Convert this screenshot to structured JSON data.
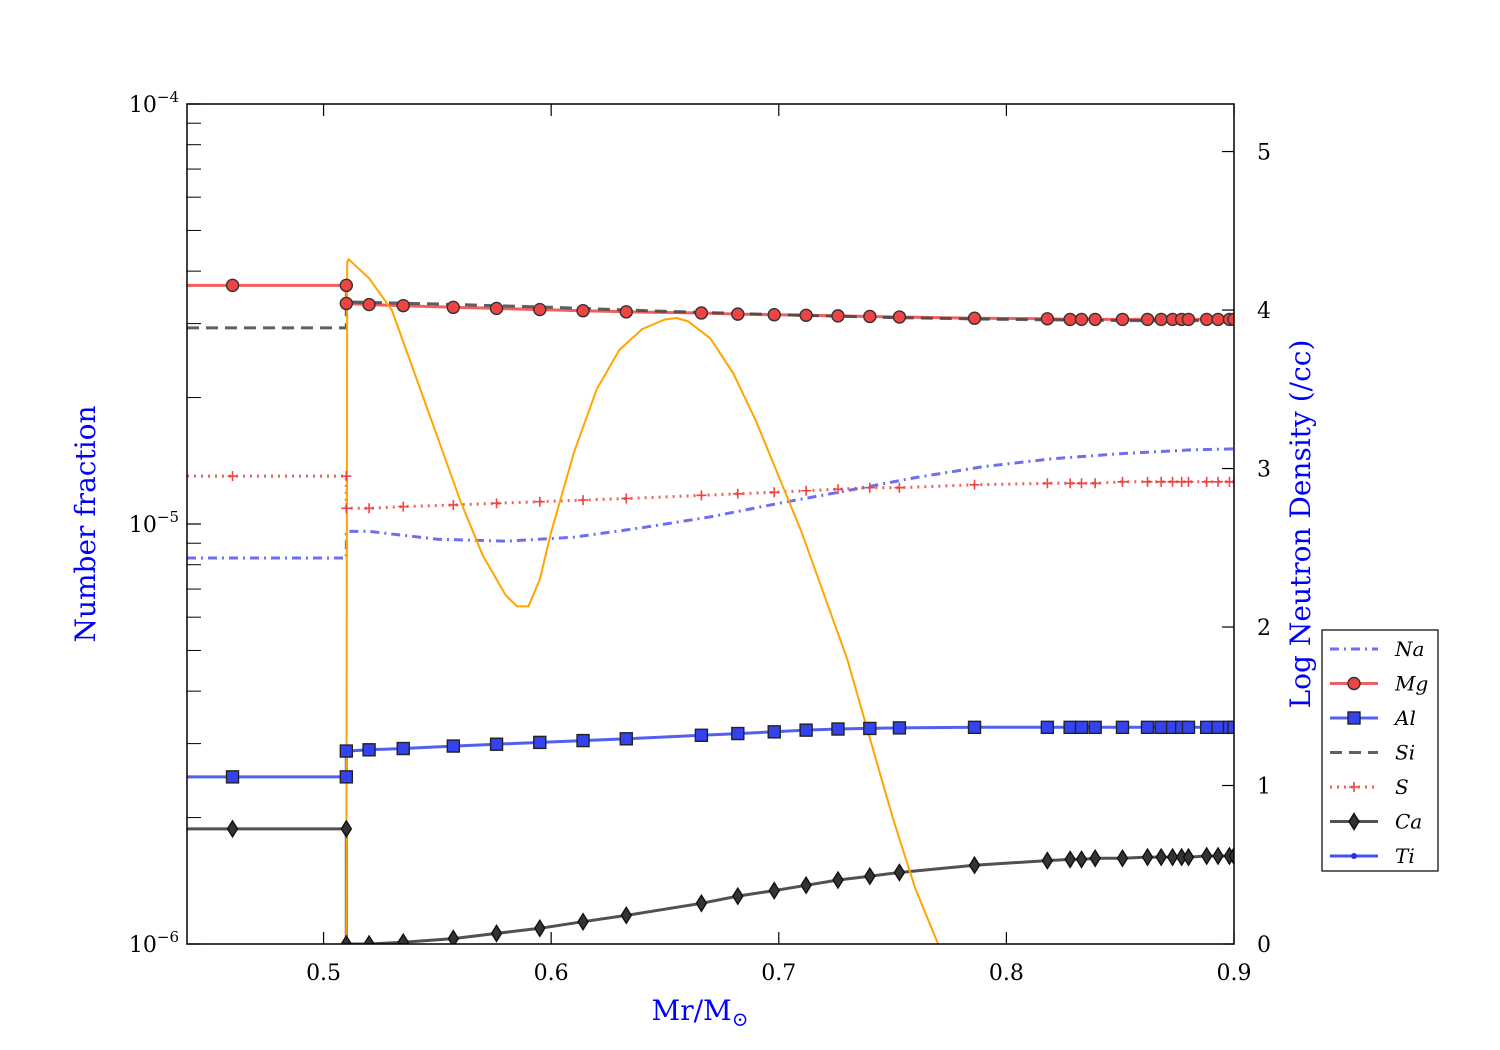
{
  "chart_data": {
    "type": "line",
    "title": "",
    "xlabel": "Mr/M",
    "xlabel_subscript": "⊙",
    "ylabel_left": "Number fraction",
    "ylabel_right": "Log Neutron Density (/cc)",
    "label_color": "#0000ff",
    "xlim": [
      0.44,
      0.9
    ],
    "ylim_left": [
      1e-06,
      0.0001
    ],
    "ylim_right": [
      0,
      5.3
    ],
    "yscale_left": "log",
    "x_ticks": [
      0.5,
      0.6,
      0.7,
      0.8,
      0.9
    ],
    "x_tick_labels": [
      "0.5",
      "0.6",
      "0.7",
      "0.8",
      "0.9"
    ],
    "y_left_ticks": [
      1e-06,
      1e-05,
      0.0001
    ],
    "y_left_tick_base": "10",
    "y_left_tick_exponents": [
      "−6",
      "−5",
      "−4"
    ],
    "y_right_ticks": [
      0,
      1,
      2,
      3,
      4,
      5
    ],
    "y_right_tick_labels": [
      "0",
      "1",
      "2",
      "3",
      "4",
      "5"
    ],
    "legend_position": "right",
    "series": [
      {
        "name": "Na",
        "axis": "left",
        "color": "#5555ee",
        "dash": "dot-dash",
        "marker": "none",
        "x": [
          0.44,
          0.51,
          0.51,
          0.52,
          0.55,
          0.58,
          0.61,
          0.64,
          0.67,
          0.7,
          0.73,
          0.76,
          0.79,
          0.82,
          0.85,
          0.88,
          0.9
        ],
        "y": [
          8.3e-06,
          8.3e-06,
          9.6e-06,
          9.6e-06,
          9.2e-06,
          9.1e-06,
          9.3e-06,
          9.8e-06,
          1.04e-05,
          1.12e-05,
          1.2e-05,
          1.29e-05,
          1.37e-05,
          1.43e-05,
          1.47e-05,
          1.5e-05,
          1.51e-05
        ]
      },
      {
        "name": "Mg",
        "axis": "left",
        "color": "#ee4444",
        "dash": "solid",
        "marker": "circle",
        "x": [
          0.44,
          0.46,
          0.51,
          0.51,
          0.52,
          0.535,
          0.557,
          0.576,
          0.595,
          0.614,
          0.633,
          0.666,
          0.682,
          0.698,
          0.712,
          0.726,
          0.74,
          0.753,
          0.786,
          0.818,
          0.828,
          0.833,
          0.839,
          0.851,
          0.862,
          0.868,
          0.873,
          0.877,
          0.88,
          0.888,
          0.893,
          0.898,
          0.9
        ],
        "y": [
          3.7e-05,
          3.7e-05,
          3.7e-05,
          3.35e-05,
          3.33e-05,
          3.31e-05,
          3.28e-05,
          3.26e-05,
          3.24e-05,
          3.22e-05,
          3.2e-05,
          3.18e-05,
          3.16e-05,
          3.15e-05,
          3.14e-05,
          3.13e-05,
          3.12e-05,
          3.11e-05,
          3.09e-05,
          3.08e-05,
          3.07e-05,
          3.07e-05,
          3.07e-05,
          3.07e-05,
          3.07e-05,
          3.07e-05,
          3.07e-05,
          3.07e-05,
          3.07e-05,
          3.07e-05,
          3.07e-05,
          3.07e-05,
          3.07e-05
        ]
      },
      {
        "name": "Al",
        "axis": "left",
        "color": "#3344ee",
        "dash": "solid",
        "marker": "square",
        "x": [
          0.44,
          0.46,
          0.51,
          0.51,
          0.52,
          0.535,
          0.557,
          0.576,
          0.595,
          0.614,
          0.633,
          0.666,
          0.682,
          0.698,
          0.712,
          0.726,
          0.74,
          0.753,
          0.786,
          0.818,
          0.828,
          0.833,
          0.839,
          0.851,
          0.862,
          0.868,
          0.873,
          0.877,
          0.88,
          0.888,
          0.893,
          0.898,
          0.9
        ],
        "y": [
          2.5e-06,
          2.5e-06,
          2.5e-06,
          2.88e-06,
          2.9e-06,
          2.92e-06,
          2.96e-06,
          2.99e-06,
          3.02e-06,
          3.05e-06,
          3.08e-06,
          3.14e-06,
          3.17e-06,
          3.2e-06,
          3.23e-06,
          3.25e-06,
          3.26e-06,
          3.27e-06,
          3.28e-06,
          3.28e-06,
          3.28e-06,
          3.28e-06,
          3.28e-06,
          3.28e-06,
          3.28e-06,
          3.28e-06,
          3.28e-06,
          3.28e-06,
          3.28e-06,
          3.28e-06,
          3.28e-06,
          3.28e-06,
          3.28e-06
        ]
      },
      {
        "name": "Si",
        "axis": "left",
        "color": "#444444",
        "dash": "dash",
        "marker": "none",
        "x": [
          0.44,
          0.51,
          0.51,
          0.55,
          0.6,
          0.65,
          0.7,
          0.75,
          0.8,
          0.85,
          0.9
        ],
        "y": [
          2.93e-05,
          2.93e-05,
          3.38e-05,
          3.34e-05,
          3.28e-05,
          3.21e-05,
          3.15e-05,
          3.1e-05,
          3.07e-05,
          3.05e-05,
          3.05e-05
        ]
      },
      {
        "name": "S",
        "axis": "left",
        "color": "#ee4444",
        "dash": "dot",
        "marker": "plus",
        "x": [
          0.44,
          0.46,
          0.51,
          0.51,
          0.52,
          0.535,
          0.557,
          0.576,
          0.595,
          0.614,
          0.633,
          0.666,
          0.682,
          0.698,
          0.712,
          0.726,
          0.74,
          0.753,
          0.786,
          0.818,
          0.828,
          0.833,
          0.839,
          0.851,
          0.862,
          0.868,
          0.873,
          0.877,
          0.88,
          0.888,
          0.893,
          0.898,
          0.9
        ],
        "y": [
          1.3e-05,
          1.3e-05,
          1.3e-05,
          1.09e-05,
          1.09e-05,
          1.1e-05,
          1.11e-05,
          1.12e-05,
          1.13e-05,
          1.14e-05,
          1.15e-05,
          1.17e-05,
          1.18e-05,
          1.19e-05,
          1.2e-05,
          1.21e-05,
          1.22e-05,
          1.22e-05,
          1.24e-05,
          1.25e-05,
          1.25e-05,
          1.25e-05,
          1.25e-05,
          1.26e-05,
          1.26e-05,
          1.26e-05,
          1.26e-05,
          1.26e-05,
          1.26e-05,
          1.26e-05,
          1.26e-05,
          1.26e-05,
          1.26e-05
        ]
      },
      {
        "name": "Ca",
        "axis": "left",
        "color": "#333333",
        "dash": "solid",
        "marker": "diamond",
        "x": [
          0.44,
          0.46,
          0.51,
          0.51,
          0.52,
          0.535,
          0.557,
          0.576,
          0.595,
          0.614,
          0.633,
          0.666,
          0.682,
          0.698,
          0.712,
          0.726,
          0.74,
          0.753,
          0.786,
          0.818,
          0.828,
          0.833,
          0.839,
          0.851,
          0.862,
          0.868,
          0.873,
          0.877,
          0.88,
          0.888,
          0.893,
          0.898,
          0.9
        ],
        "y": [
          1.88e-06,
          1.88e-06,
          1.88e-06,
          1e-06,
          1e-06,
          1.01e-06,
          1.03e-06,
          1.06e-06,
          1.09e-06,
          1.13e-06,
          1.17e-06,
          1.25e-06,
          1.3e-06,
          1.34e-06,
          1.38e-06,
          1.42e-06,
          1.45e-06,
          1.48e-06,
          1.54e-06,
          1.58e-06,
          1.59e-06,
          1.59e-06,
          1.6e-06,
          1.6e-06,
          1.61e-06,
          1.61e-06,
          1.61e-06,
          1.61e-06,
          1.61e-06,
          1.62e-06,
          1.62e-06,
          1.62e-06,
          1.62e-06
        ]
      },
      {
        "name": "Ti",
        "axis": "left",
        "color": "#2233ee",
        "dash": "solid",
        "marker": "dot",
        "x": [],
        "y": []
      },
      {
        "name": "",
        "axis": "right",
        "color": "#ffa500",
        "dash": "solid",
        "marker": "none",
        "x": [
          0.51,
          0.5102,
          0.5104,
          0.511,
          0.52,
          0.53,
          0.54,
          0.55,
          0.56,
          0.57,
          0.58,
          0.585,
          0.59,
          0.595,
          0.6,
          0.61,
          0.62,
          0.63,
          0.64,
          0.65,
          0.655,
          0.66,
          0.67,
          0.68,
          0.69,
          0.7,
          0.71,
          0.72,
          0.73,
          0.74,
          0.75,
          0.76,
          0.77
        ],
        "y": [
          0.0,
          2.5,
          4.3,
          4.32,
          4.2,
          4.0,
          3.6,
          3.2,
          2.8,
          2.45,
          2.2,
          2.13,
          2.13,
          2.3,
          2.6,
          3.1,
          3.5,
          3.75,
          3.88,
          3.94,
          3.95,
          3.93,
          3.82,
          3.6,
          3.3,
          2.95,
          2.6,
          2.2,
          1.8,
          1.3,
          0.8,
          0.35,
          0.0
        ]
      }
    ]
  }
}
